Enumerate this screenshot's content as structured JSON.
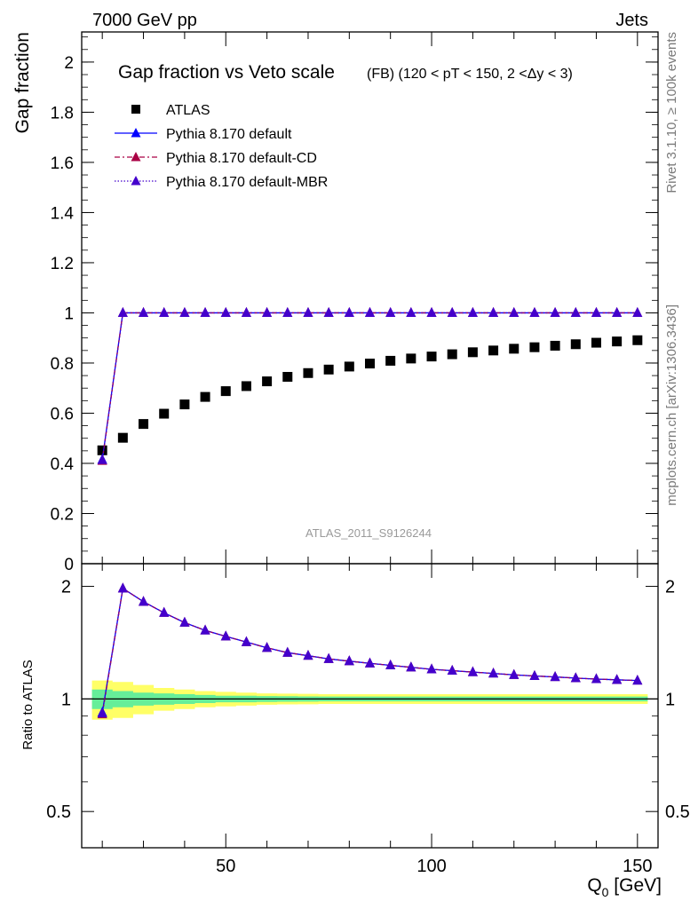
{
  "header": {
    "left": "7000 GeV pp",
    "right": "Jets"
  },
  "side": {
    "rivet": "Rivet 3.1.10, ≥ 100k events",
    "mcplots": "mcplots.cern.ch [arXiv:1306.3436]"
  },
  "colors": {
    "atlas": "#000000",
    "default": "#0000ff",
    "cd": "#aa0044",
    "mbr": "#4400cc",
    "band_outer": "#ffff66",
    "band_inner": "#66ee99"
  },
  "chart_data": [
    {
      "type": "scatter",
      "title": "Gap fraction vs Veto scale",
      "subtitle": "(FB) (120 < pT < 150, 2 <Δy < 3)",
      "ylabel": "Gap fraction",
      "xlim": [
        15,
        155
      ],
      "ylim": [
        0,
        2.12
      ],
      "yticks": [
        0,
        0.2,
        0.4,
        0.6,
        0.8,
        1,
        1.2,
        1.4,
        1.6,
        1.8,
        2
      ],
      "ytick_labels": [
        "0",
        "0.2",
        "0.4",
        "0.6",
        "0.8",
        "1",
        "1.2",
        "1.4",
        "1.6",
        "1.8",
        "2"
      ],
      "watermark": "ATLAS_2011_S9126244",
      "x": [
        20,
        25,
        30,
        35,
        40,
        45,
        50,
        55,
        60,
        65,
        70,
        75,
        80,
        85,
        90,
        95,
        100,
        105,
        110,
        115,
        120,
        125,
        130,
        135,
        140,
        145,
        150
      ],
      "series": [
        {
          "name": "ATLAS",
          "style": "square",
          "values": [
            0.452,
            0.502,
            0.557,
            0.598,
            0.635,
            0.665,
            0.688,
            0.708,
            0.727,
            0.745,
            0.76,
            0.774,
            0.786,
            0.798,
            0.809,
            0.818,
            0.826,
            0.835,
            0.843,
            0.85,
            0.857,
            0.863,
            0.869,
            0.875,
            0.881,
            0.886,
            0.891
          ]
        },
        {
          "name": "Pythia 8.170 default",
          "style": "solid",
          "values": [
            0.415,
            1,
            1,
            1,
            1,
            1,
            1,
            1,
            1,
            1,
            1,
            1,
            1,
            1,
            1,
            1,
            1,
            1,
            1,
            1,
            1,
            1,
            1,
            1,
            1,
            1,
            1
          ]
        },
        {
          "name": "Pythia 8.170 default-CD",
          "style": "dashdot",
          "values": [
            0.41,
            1,
            1,
            1,
            1,
            1,
            1,
            1,
            1,
            1,
            1,
            1,
            1,
            1,
            1,
            1,
            1,
            1,
            1,
            1,
            1,
            1,
            1,
            1,
            1,
            1,
            1
          ]
        },
        {
          "name": "Pythia 8.170 default-MBR",
          "style": "dotted",
          "values": [
            0.413,
            1,
            1,
            1,
            1,
            1,
            1,
            1,
            1,
            1,
            1,
            1,
            1,
            1,
            1,
            1,
            1,
            1,
            1,
            1,
            1,
            1,
            1,
            1,
            1,
            1,
            1
          ]
        }
      ]
    },
    {
      "type": "line",
      "ylabel": "Ratio to ATLAS",
      "xlabel": "Q",
      "xlabel_sub": "0",
      "xlabel_unit": " [GeV]",
      "xlim": [
        15,
        155
      ],
      "ylim": [
        0.4,
        2.3
      ],
      "scale": "log",
      "xticks": [
        50,
        100,
        150
      ],
      "xtick_labels": [
        "50",
        "100",
        "150"
      ],
      "yticks": [
        0.5,
        1,
        2
      ],
      "ytick_labels": [
        "0.5",
        "1",
        "2"
      ],
      "x": [
        20,
        25,
        30,
        35,
        40,
        45,
        50,
        55,
        60,
        65,
        70,
        75,
        80,
        85,
        90,
        95,
        100,
        105,
        110,
        115,
        120,
        125,
        130,
        135,
        140,
        145,
        150
      ],
      "band_outer": [
        0.12,
        0.11,
        0.09,
        0.07,
        0.06,
        0.05,
        0.045,
        0.04,
        0.035,
        0.033,
        0.032,
        0.03,
        0.03,
        0.03,
        0.03,
        0.03,
        0.03,
        0.03,
        0.03,
        0.03,
        0.03,
        0.03,
        0.03,
        0.03,
        0.03,
        0.03,
        0.03
      ],
      "band_inner": [
        0.06,
        0.05,
        0.04,
        0.035,
        0.03,
        0.025,
        0.02,
        0.02,
        0.018,
        0.017,
        0.016,
        0.015,
        0.015,
        0.015,
        0.015,
        0.015,
        0.015,
        0.015,
        0.015,
        0.015,
        0.015,
        0.015,
        0.015,
        0.015,
        0.015,
        0.015,
        0.015
      ],
      "series": [
        {
          "name": "Pythia 8.170 default",
          "values": [
            0.92,
            1.975,
            1.82,
            1.7,
            1.6,
            1.525,
            1.47,
            1.42,
            1.37,
            1.33,
            1.305,
            1.28,
            1.262,
            1.245,
            1.23,
            1.215,
            1.2,
            1.19,
            1.18,
            1.17,
            1.16,
            1.152,
            1.145,
            1.137,
            1.13,
            1.125,
            1.12
          ]
        },
        {
          "name": "Pythia 8.170 default-CD",
          "values": [
            0.91,
            1.975,
            1.82,
            1.7,
            1.6,
            1.525,
            1.47,
            1.42,
            1.37,
            1.33,
            1.305,
            1.28,
            1.262,
            1.245,
            1.23,
            1.215,
            1.2,
            1.19,
            1.18,
            1.17,
            1.16,
            1.152,
            1.145,
            1.137,
            1.13,
            1.125,
            1.12
          ]
        },
        {
          "name": "Pythia 8.170 default-MBR",
          "values": [
            0.915,
            1.975,
            1.82,
            1.7,
            1.6,
            1.525,
            1.47,
            1.42,
            1.37,
            1.33,
            1.305,
            1.28,
            1.262,
            1.245,
            1.23,
            1.215,
            1.2,
            1.19,
            1.18,
            1.17,
            1.16,
            1.152,
            1.145,
            1.137,
            1.13,
            1.125,
            1.12
          ]
        }
      ]
    }
  ]
}
